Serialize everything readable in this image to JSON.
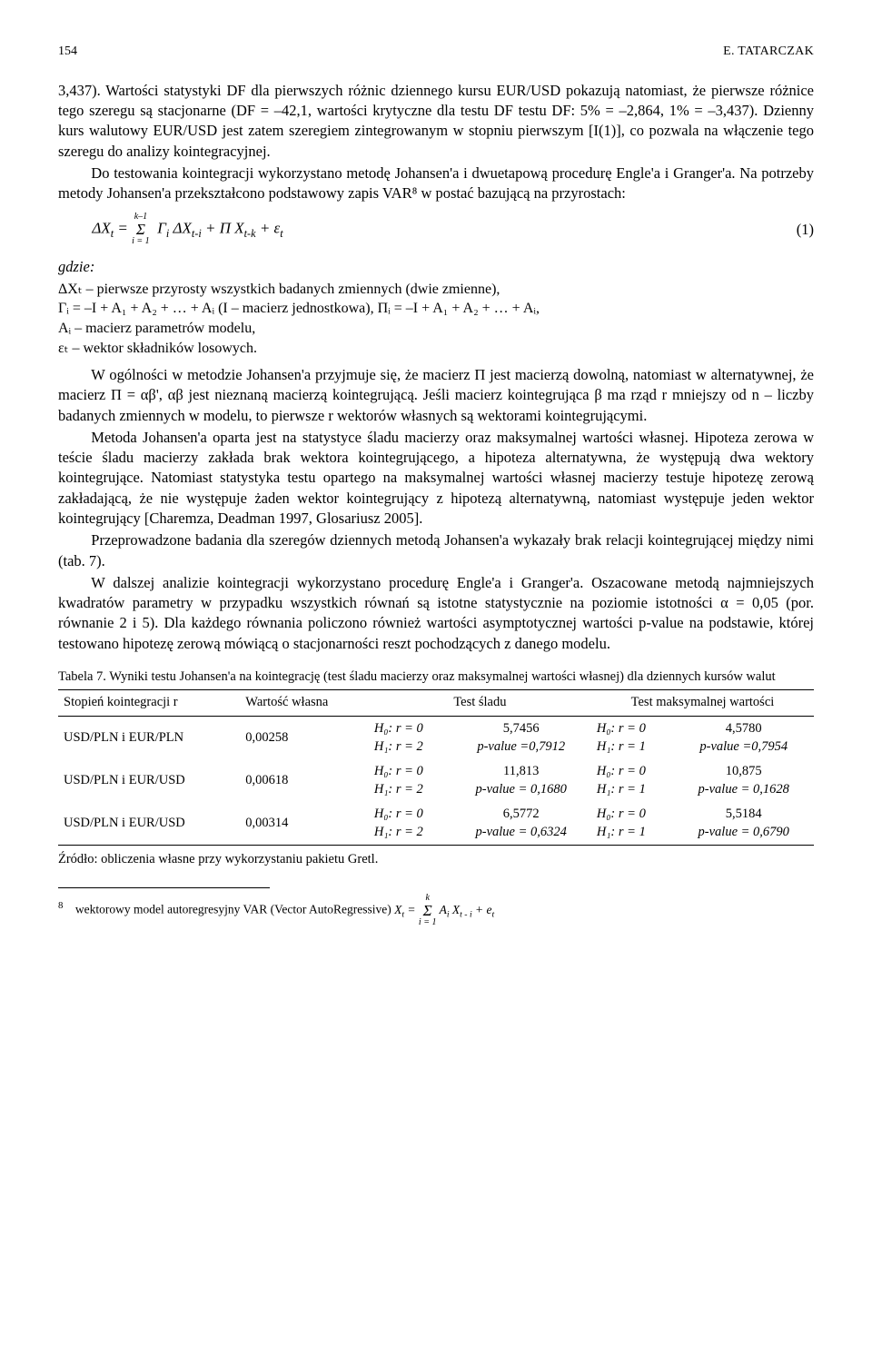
{
  "header": {
    "page_number": "154",
    "author": "E. TATARCZAK"
  },
  "body": {
    "p1": "3,437). Wartości statystyki DF dla pierwszych różnic dziennego kursu EUR/USD pokazują natomiast, że pierwsze różnice tego szeregu są stacjonarne (DF = –42,1, wartości krytyczne dla testu DF testu DF: 5% = –2,864, 1% = –3,437). Dzienny kurs walutowy EUR/USD jest zatem szeregiem zintegrowanym w stopniu pierwszym [I(1)], co pozwala na włączenie tego szeregu do analizy kointegracyjnej.",
    "p2": "Do testowania kointegracji wykorzystano metodę Johansen'a i dwuetapową procedurę Engle'a i Granger'a. Na potrzeby metody Johansen'a przekształcono podstawowy zapis VAR⁸ w postać bazującą na przyrostach:",
    "eq1": "ΔXₜ = Σ  Γᵢ ΔXₜ₋ᵢ + Π Xₜ₋ₖ + εₜ",
    "eq1_sup": "k–1",
    "eq1_sub": "i = 1",
    "eq1_num": "(1)",
    "where": "gdzie:",
    "def1": "ΔXₜ – pierwsze przyrosty wszystkich badanych zmiennych (dwie zmienne),",
    "def2": "Γᵢ = –I + A₁ + A₂ + … + Aᵢ (I – macierz jednostkowa), Πᵢ = –I + A₁ + A₂ + … + Aᵢ,",
    "def3": "Aᵢ – macierz parametrów modelu,",
    "def4": "εₜ – wektor składników losowych.",
    "p3": "W ogólności w metodzie Johansen'a przyjmuje się, że macierz Π jest macierzą dowolną, natomiast w alternatywnej, że macierz Π = αβ', αβ jest nieznaną macierzą kointegrującą. Jeśli macierz kointegrująca β ma rząd r mniejszy od n – liczby badanych zmiennych w modelu, to pierwsze r wektorów własnych są wektorami kointegrującymi.",
    "p4": "Metoda Johansen'a oparta jest na statystyce śladu macierzy oraz maksymalnej wartości własnej. Hipoteza zerowa w teście śladu macierzy zakłada brak wektora kointegrującego, a hipoteza alternatywna, że występują dwa wektory kointegrujące. Natomiast statystyka testu opartego na maksymalnej wartości własnej macierzy testuje hipotezę zerową zakładającą, że nie występuje żaden wektor kointegrujący z hipotezą alternatywną, natomiast występuje jeden wektor kointegrujący [Charemza, Deadman 1997, Glosariusz 2005].",
    "p5": "Przeprowadzone badania dla szeregów dziennych metodą Johansen'a wykazały brak relacji kointegrującej między nimi (tab. 7).",
    "p6": "W dalszej analizie kointegracji wykorzystano procedurę Engle'a i Granger'a. Oszacowane metodą najmniejszych kwadratów parametry w przypadku wszystkich równań są istotne statystycznie na poziomie istotności α = 0,05 (por. równanie 2 i 5). Dla każdego równania policzono również wartości asymptotycznej wartości p-value na podstawie, której testowano hipotezę zerową mówiącą o stacjonarności reszt pochodzących z danego modelu."
  },
  "table7": {
    "caption": "Tabela 7. Wyniki testu Johansen'a na kointegrację (test śladu macierzy oraz maksymalnej wartości własnej) dla dziennych kursów walut",
    "headers": {
      "c1": "Stopień kointegracji r",
      "c2": "Wartość własna",
      "c3": "Test śladu",
      "c4": "Test maksymalnej wartości"
    },
    "rows": [
      {
        "pair": "USD/PLN i EUR/PLN",
        "eigen": "0,00258",
        "trace_h0": "H₀: r = 0",
        "trace_h1": "H₁: r = 2",
        "trace_stat": "5,7456",
        "trace_p": "p-value =0,7912",
        "max_h0": "H₀: r = 0",
        "max_h1": "H₁: r = 1",
        "max_stat": "4,5780",
        "max_p": "p-value =0,7954"
      },
      {
        "pair": "USD/PLN i EUR/USD",
        "eigen": "0,00618",
        "trace_h0": "H₀: r = 0",
        "trace_h1": "H₁: r = 2",
        "trace_stat": "11,813",
        "trace_p": "p-value = 0,1680",
        "max_h0": "H₀: r = 0",
        "max_h1": "H₁: r = 1",
        "max_stat": "10,875",
        "max_p": "p-value = 0,1628"
      },
      {
        "pair": "USD/PLN i EUR/USD",
        "eigen": "0,00314",
        "trace_h0": "H₀: r = 0",
        "trace_h1": "H₁: r = 2",
        "trace_stat": "6,5772",
        "trace_p": "p-value = 0,6324",
        "max_h0": "H₀: r = 0",
        "max_h1": "H₁: r = 1",
        "max_stat": "5,5184",
        "max_p": "p-value = 0,6790"
      }
    ],
    "source": "Źródło: obliczenia własne przy wykorzystaniu pakietu Gretl."
  },
  "footnote": {
    "num": "8",
    "text_before": "wektorowy model autoregresyjny VAR (Vector AutoRegressive) ",
    "eq": "Xₜ = Σ Aᵢ Xₜ₋ᵢ + eₜ",
    "eq_sup": "k",
    "eq_sub": "i = 1"
  }
}
